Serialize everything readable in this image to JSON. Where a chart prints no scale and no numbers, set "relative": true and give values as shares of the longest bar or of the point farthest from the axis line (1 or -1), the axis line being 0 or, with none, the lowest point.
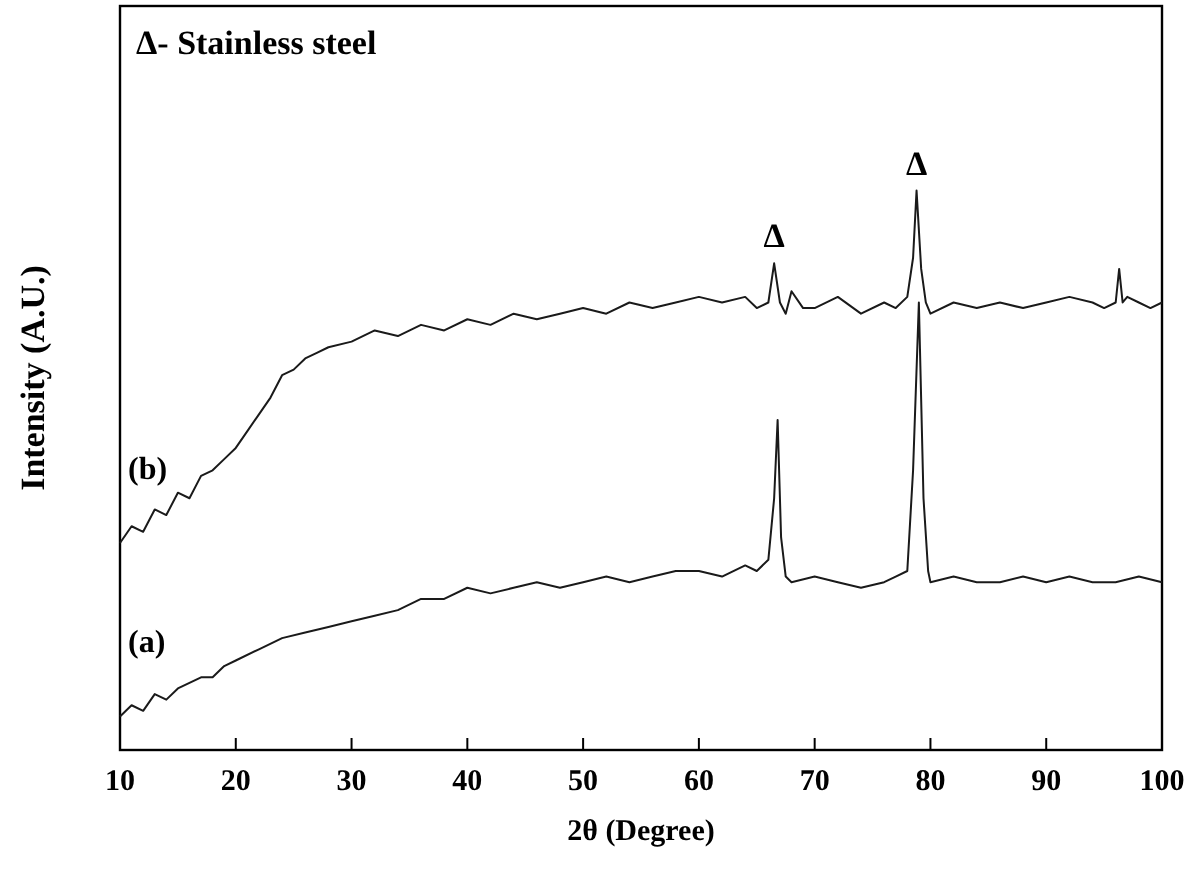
{
  "chart_data": {
    "type": "line",
    "relative": true,
    "xlabel": "2θ (Degree)",
    "ylabel": "Intensity (A.U.)",
    "xlim": [
      10,
      100
    ],
    "xticks": [
      10,
      20,
      30,
      40,
      50,
      60,
      70,
      80,
      90,
      100
    ],
    "grid": false,
    "line_style": "solid",
    "annotations": [
      "Δ- Stainless steel",
      {
        "text": "Δ",
        "x": 66.5,
        "y": 0.87
      },
      {
        "text": "Δ",
        "x": 78.8,
        "y": 1.0
      }
    ],
    "series": [
      {
        "name": "(b)",
        "color": "#1a1a1a",
        "x": [
          10,
          11,
          12,
          13,
          14,
          15,
          16,
          17,
          18,
          19,
          20,
          21,
          22,
          23,
          24,
          25,
          26,
          27,
          28,
          30,
          32,
          34,
          36,
          38,
          40,
          42,
          44,
          46,
          48,
          50,
          52,
          54,
          56,
          58,
          60,
          62,
          64,
          65,
          66,
          66.5,
          67,
          67.5,
          68,
          69,
          70,
          72,
          74,
          76,
          77,
          78,
          78.5,
          78.8,
          79.2,
          79.6,
          80,
          82,
          84,
          86,
          88,
          90,
          92,
          94,
          95,
          96,
          96.3,
          96.6,
          97,
          98,
          99,
          100
        ],
        "values": [
          0.37,
          0.4,
          0.39,
          0.43,
          0.42,
          0.46,
          0.45,
          0.49,
          0.5,
          0.52,
          0.54,
          0.57,
          0.6,
          0.63,
          0.67,
          0.68,
          0.7,
          0.71,
          0.72,
          0.73,
          0.75,
          0.74,
          0.76,
          0.75,
          0.77,
          0.76,
          0.78,
          0.77,
          0.78,
          0.79,
          0.78,
          0.8,
          0.79,
          0.8,
          0.81,
          0.8,
          0.81,
          0.79,
          0.8,
          0.87,
          0.8,
          0.78,
          0.82,
          0.79,
          0.79,
          0.81,
          0.78,
          0.8,
          0.79,
          0.81,
          0.88,
          1.0,
          0.86,
          0.8,
          0.78,
          0.8,
          0.79,
          0.8,
          0.79,
          0.8,
          0.81,
          0.8,
          0.79,
          0.8,
          0.86,
          0.8,
          0.81,
          0.8,
          0.79,
          0.8
        ]
      },
      {
        "name": "(a)",
        "color": "#1a1a1a",
        "x": [
          10,
          11,
          12,
          13,
          14,
          15,
          16,
          17,
          18,
          19,
          20,
          22,
          24,
          26,
          28,
          30,
          32,
          34,
          36,
          38,
          40,
          42,
          44,
          46,
          48,
          50,
          52,
          54,
          56,
          58,
          60,
          62,
          64,
          65,
          66,
          66.5,
          66.8,
          67.1,
          67.5,
          68,
          70,
          72,
          74,
          76,
          77,
          78,
          78.5,
          79,
          79.4,
          79.8,
          80,
          82,
          84,
          86,
          88,
          90,
          92,
          94,
          96,
          98,
          100
        ],
        "values": [
          0.06,
          0.08,
          0.07,
          0.1,
          0.09,
          0.11,
          0.12,
          0.13,
          0.13,
          0.15,
          0.16,
          0.18,
          0.2,
          0.21,
          0.22,
          0.23,
          0.24,
          0.25,
          0.27,
          0.27,
          0.29,
          0.28,
          0.29,
          0.3,
          0.29,
          0.3,
          0.31,
          0.3,
          0.31,
          0.32,
          0.32,
          0.31,
          0.33,
          0.32,
          0.34,
          0.45,
          0.59,
          0.38,
          0.31,
          0.3,
          0.31,
          0.3,
          0.29,
          0.3,
          0.31,
          0.32,
          0.5,
          0.8,
          0.45,
          0.32,
          0.3,
          0.31,
          0.3,
          0.3,
          0.31,
          0.3,
          0.31,
          0.3,
          0.3,
          0.31,
          0.3
        ]
      }
    ]
  }
}
